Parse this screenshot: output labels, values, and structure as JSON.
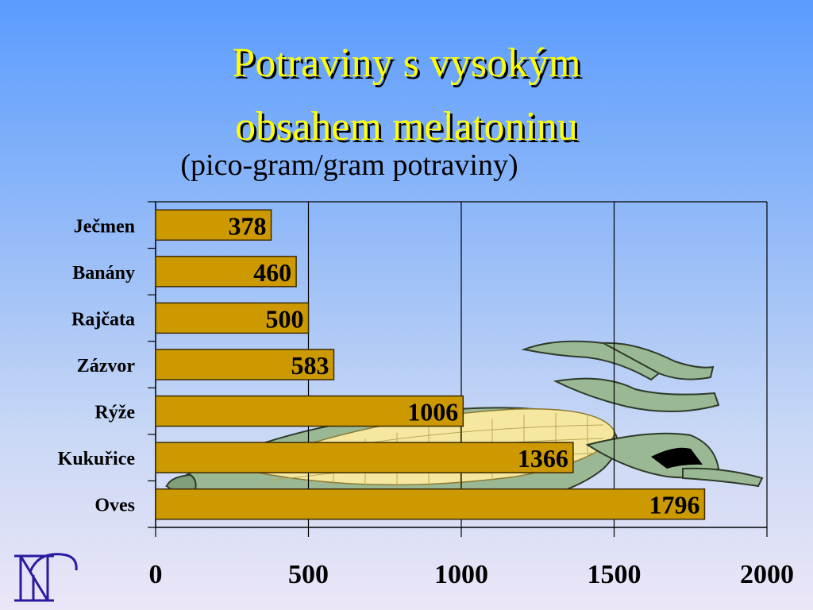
{
  "slide": {
    "title_line1": "Potraviny s vysokým",
    "title_line2": "obsahem melatoninu",
    "subtitle": "(pico-gram/gram potraviny)"
  },
  "colors": {
    "bar_fill": "#cc9900",
    "bar_stroke": "#3b2a00",
    "title_text": "#ffff00",
    "corn_husk": "#9bb894",
    "corn_kernel": "#f5e7a0",
    "logo": "#2a1aa0"
  },
  "chart_data": {
    "type": "bar",
    "orientation": "horizontal",
    "title": "Potraviny s vysokým obsahem melatoninu",
    "subtitle": "(pico-gram/gram potraviny)",
    "categories": [
      "Ječmen",
      "Banány",
      "Rajčata",
      "Zázvor",
      "Rýže",
      "Kukuřice",
      "Oves"
    ],
    "values": [
      378,
      460,
      500,
      583,
      1006,
      1366,
      1796
    ],
    "data_labels": [
      "378",
      "460",
      "500",
      "583",
      "1006",
      "1366",
      "1796"
    ],
    "xlim": [
      0,
      2000
    ],
    "xticks": [
      0,
      500,
      1000,
      1500,
      2000
    ],
    "xtick_labels": [
      "0",
      "500",
      "1000",
      "1500",
      "2000"
    ],
    "grid": "vertical",
    "legend": "none",
    "xlabel": "",
    "ylabel": ""
  }
}
